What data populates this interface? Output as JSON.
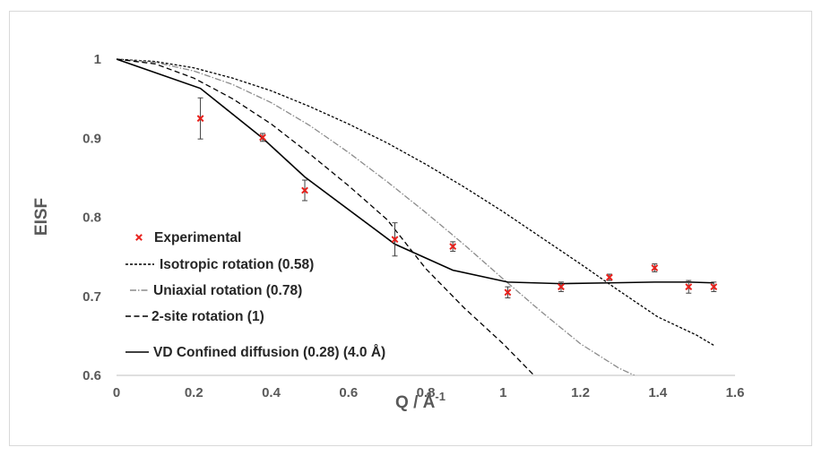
{
  "chart_data": {
    "type": "scatter",
    "xlabel": "Q / Å",
    "xlabel_sup": "-1",
    "ylabel": "EISF",
    "xlim": [
      0,
      1.6
    ],
    "ylim": [
      0.6,
      1.0
    ],
    "x_ticks": [
      "0",
      "0.2",
      "0.4",
      "0.6",
      "0.8",
      "1",
      "1.2",
      "1.4",
      "1.6"
    ],
    "y_ticks": [
      "0.6",
      "0.7",
      "0.8",
      "0.9",
      "1"
    ],
    "grid": false,
    "legend_position": "bottom-left",
    "colors": {
      "experimental": "#e8211c",
      "line": "#000000",
      "error_bar": "#404040",
      "uniaxial": "#8c8c8c"
    },
    "series": [
      {
        "name": "Experimental",
        "kind": "points",
        "marker": "x",
        "x": [
          0.217,
          0.378,
          0.487,
          0.72,
          0.87,
          1.012,
          1.15,
          1.275,
          1.392,
          1.48,
          1.545
        ],
        "y": [
          0.925,
          0.901,
          0.834,
          0.772,
          0.763,
          0.705,
          0.712,
          0.724,
          0.736,
          0.712,
          0.712
        ],
        "err": [
          0.026,
          0.005,
          0.013,
          0.021,
          0.006,
          0.007,
          0.006,
          0.004,
          0.005,
          0.008,
          0.006
        ]
      },
      {
        "name": "Isotropic rotation (0.58)",
        "kind": "line",
        "dash": "short",
        "x": [
          0,
          0.1,
          0.2,
          0.3,
          0.4,
          0.5,
          0.6,
          0.7,
          0.8,
          0.9,
          1.0,
          1.1,
          1.2,
          1.3,
          1.4,
          1.5,
          1.545
        ],
        "y": [
          1.0,
          0.997,
          0.989,
          0.976,
          0.96,
          0.94,
          0.918,
          0.894,
          0.867,
          0.838,
          0.807,
          0.774,
          0.741,
          0.707,
          0.674,
          0.651,
          0.638
        ]
      },
      {
        "name": "Uniaxial rotation (0.78)",
        "kind": "line",
        "dash": "dashdot",
        "x": [
          0,
          0.1,
          0.2,
          0.3,
          0.4,
          0.5,
          0.6,
          0.7,
          0.8,
          0.9,
          1.0,
          1.1,
          1.2,
          1.3,
          1.34
        ],
        "y": [
          1.0,
          0.996,
          0.985,
          0.968,
          0.945,
          0.916,
          0.882,
          0.845,
          0.806,
          0.765,
          0.722,
          0.68,
          0.64,
          0.609,
          0.6
        ]
      },
      {
        "name": "2-site rotation (1)",
        "kind": "line",
        "dash": "long",
        "x": [
          0,
          0.1,
          0.2,
          0.3,
          0.4,
          0.5,
          0.6,
          0.7,
          0.8,
          0.9,
          1.0,
          1.08
        ],
        "y": [
          1.0,
          0.994,
          0.976,
          0.95,
          0.918,
          0.88,
          0.84,
          0.797,
          0.735,
          0.685,
          0.64,
          0.6
        ]
      },
      {
        "name": "VD Confined diffusion (0.28) (4.0 Å)",
        "kind": "line",
        "dash": "solid",
        "x": [
          0,
          0.217,
          0.378,
          0.487,
          0.72,
          0.87,
          1.012,
          1.15,
          1.275,
          1.392,
          1.48,
          1.545
        ],
        "y": [
          1.0,
          0.963,
          0.9,
          0.851,
          0.766,
          0.733,
          0.718,
          0.716,
          0.717,
          0.718,
          0.718,
          0.717
        ]
      }
    ]
  }
}
